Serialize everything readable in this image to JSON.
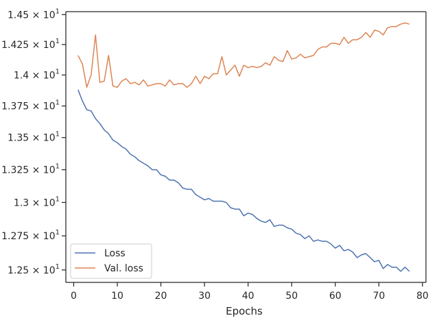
{
  "chart_data": {
    "type": "line",
    "xlabel": "Epochs",
    "ylabel": "",
    "xlim": [
      -1.8,
      80.8
    ],
    "ylim": [
      12.41,
      14.525
    ],
    "x_ticks": [
      0,
      10,
      20,
      30,
      40,
      50,
      60,
      70,
      80
    ],
    "y_ticks": [
      {
        "value": 12.5,
        "mantissa": "1.25",
        "base": "10",
        "exp": "1"
      },
      {
        "value": 12.75,
        "mantissa": "1.275",
        "base": "10",
        "exp": "1"
      },
      {
        "value": 13.0,
        "mantissa": "1.3",
        "base": "10",
        "exp": "1"
      },
      {
        "value": 13.25,
        "mantissa": "1.325",
        "base": "10",
        "exp": "1"
      },
      {
        "value": 13.5,
        "mantissa": "1.35",
        "base": "10",
        "exp": "1"
      },
      {
        "value": 13.75,
        "mantissa": "1.375",
        "base": "10",
        "exp": "1"
      },
      {
        "value": 14.0,
        "mantissa": "1.4",
        "base": "10",
        "exp": "1"
      },
      {
        "value": 14.25,
        "mantissa": "1.425",
        "base": "10",
        "exp": "1"
      },
      {
        "value": 14.5,
        "mantissa": "1.45",
        "base": "10",
        "exp": "1"
      }
    ],
    "log_scale_y": true,
    "grid": false,
    "legend_position": "bottom-left",
    "x": [
      1,
      2,
      3,
      4,
      5,
      6,
      7,
      8,
      9,
      10,
      11,
      12,
      13,
      14,
      15,
      16,
      17,
      18,
      19,
      20,
      21,
      22,
      23,
      24,
      25,
      26,
      27,
      28,
      29,
      30,
      31,
      32,
      33,
      34,
      35,
      36,
      37,
      38,
      39,
      40,
      41,
      42,
      43,
      44,
      45,
      46,
      47,
      48,
      49,
      50,
      51,
      52,
      53,
      54,
      55,
      56,
      57,
      58,
      59,
      60,
      61,
      62,
      63,
      64,
      65,
      66,
      67,
      68,
      69,
      70,
      71,
      72,
      73,
      74,
      75,
      76,
      77
    ],
    "series": [
      {
        "name": "Loss",
        "color": "#4c72b0",
        "values": [
          13.88,
          13.79,
          13.72,
          13.71,
          13.65,
          13.61,
          13.56,
          13.53,
          13.48,
          13.46,
          13.43,
          13.41,
          13.37,
          13.35,
          13.32,
          13.3,
          13.28,
          13.25,
          13.25,
          13.21,
          13.2,
          13.17,
          13.17,
          13.15,
          13.11,
          13.1,
          13.1,
          13.06,
          13.04,
          13.02,
          13.03,
          13.01,
          13.01,
          13.01,
          13.0,
          12.96,
          12.95,
          12.95,
          12.9,
          12.92,
          12.91,
          12.88,
          12.86,
          12.85,
          12.87,
          12.82,
          12.83,
          12.83,
          12.81,
          12.8,
          12.77,
          12.76,
          12.73,
          12.75,
          12.71,
          12.72,
          12.71,
          12.71,
          12.69,
          12.66,
          12.68,
          12.64,
          12.65,
          12.63,
          12.59,
          12.61,
          12.62,
          12.59,
          12.56,
          12.57,
          12.51,
          12.54,
          12.52,
          12.52,
          12.49,
          12.52,
          12.49
        ]
      },
      {
        "name": "Val. loss",
        "color": "#dd8452",
        "values": [
          14.16,
          14.09,
          13.9,
          14.0,
          14.33,
          13.94,
          13.95,
          14.16,
          13.91,
          13.9,
          13.95,
          13.97,
          13.93,
          13.94,
          13.92,
          13.96,
          13.91,
          13.92,
          13.93,
          13.93,
          13.91,
          13.96,
          13.92,
          13.93,
          13.93,
          13.9,
          13.93,
          13.99,
          13.93,
          13.99,
          13.97,
          14.01,
          14.01,
          14.15,
          14.0,
          14.04,
          14.08,
          13.99,
          14.08,
          14.06,
          14.07,
          14.06,
          14.07,
          14.1,
          14.08,
          14.15,
          14.12,
          14.11,
          14.2,
          14.13,
          14.14,
          14.17,
          14.14,
          14.15,
          14.16,
          14.21,
          14.23,
          14.23,
          14.26,
          14.26,
          14.25,
          14.31,
          14.26,
          14.29,
          14.29,
          14.31,
          14.35,
          14.31,
          14.37,
          14.36,
          14.33,
          14.39,
          14.4,
          14.4,
          14.42,
          14.43,
          14.42
        ]
      }
    ]
  }
}
